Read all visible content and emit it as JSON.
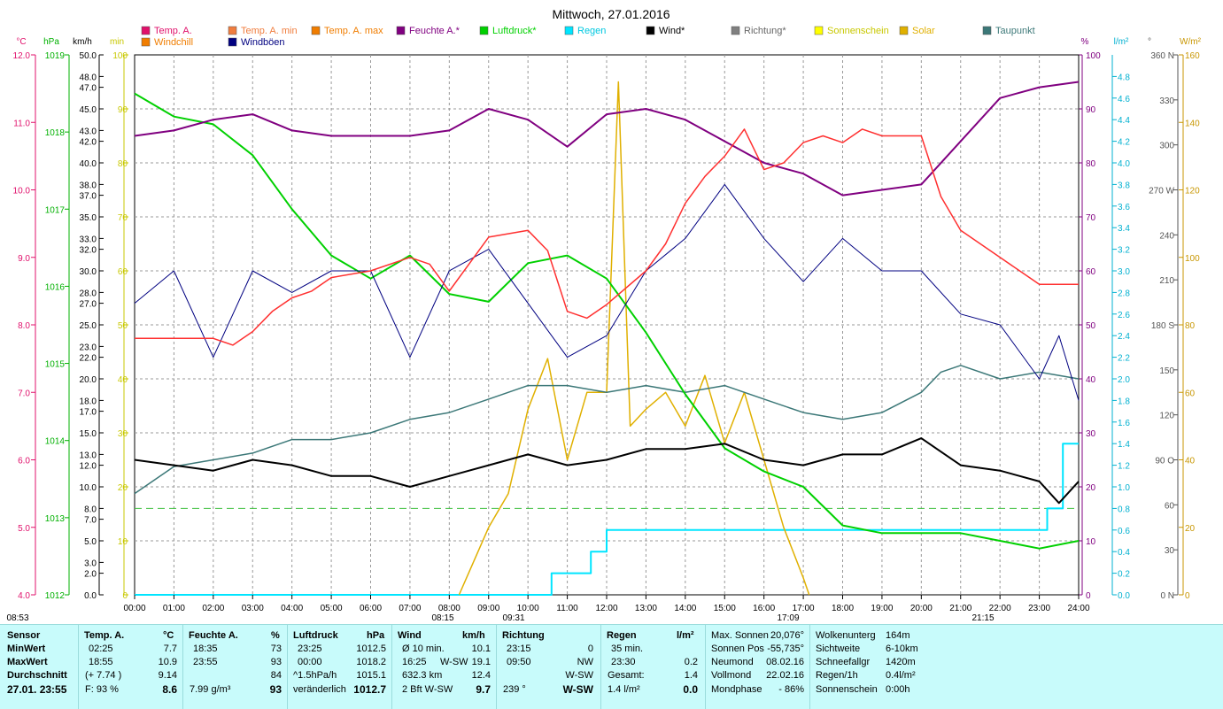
{
  "chart_data": {
    "type": "line",
    "title": "Mittwoch, 27.01.2016",
    "x_ticks": [
      "00:00",
      "01:00",
      "02:00",
      "03:00",
      "04:00",
      "05:00",
      "06:00",
      "07:00",
      "08:00",
      "09:00",
      "10:00",
      "11:00",
      "12:00",
      "13:00",
      "14:00",
      "15:00",
      "16:00",
      "17:00",
      "18:00",
      "19:00",
      "20:00",
      "21:00",
      "22:00",
      "23:00",
      "24:00"
    ],
    "x_range_hours": [
      0,
      24
    ],
    "time_markers": [
      "08:53",
      "08:15",
      "09:31",
      "17:09",
      "21:15"
    ],
    "legend": [
      {
        "name": "Temp. A.",
        "color": "#e0106b"
      },
      {
        "name": "Temp. A. min",
        "color": "#f07d3e"
      },
      {
        "name": "Temp. A. max",
        "color": "#f07d00"
      },
      {
        "name": "Feuchte A.*",
        "color": "#800080"
      },
      {
        "name": "Luftdruck*",
        "color": "#00d000"
      },
      {
        "name": "Regen",
        "color": "#00e5ff"
      },
      {
        "name": "Wind*",
        "color": "#000000"
      },
      {
        "name": "Richtung*",
        "color": "#808080"
      },
      {
        "name": "Sonnenschein",
        "color": "#ffff00"
      },
      {
        "name": "Solar",
        "color": "#e0b000"
      },
      {
        "name": "Taupunkt",
        "color": "#3c7878"
      },
      {
        "name": "Windchill",
        "color": "#f07d00"
      },
      {
        "name": "Windböen",
        "color": "#000080"
      }
    ],
    "axis_units": {
      "temp": "°C",
      "press": "hPa",
      "wind": "km/h",
      "sun": "min",
      "hum": "%",
      "rain": "l/m²",
      "dir": "°",
      "solar": "W/m²"
    },
    "y_temp_ticks": [
      "12.0",
      "11.0",
      "10.0",
      "9.0",
      "8.0",
      "7.0",
      "6.0",
      "5.0",
      "4.0"
    ],
    "y_press_ticks": [
      "1019",
      "1018",
      "1017",
      "1016",
      "1015",
      "1014",
      "1013",
      "1012"
    ],
    "y_wind_ticks": [
      "50.0",
      "48.0",
      "47.0",
      "45.0",
      "43.0",
      "42.0",
      "40.0",
      "38.0",
      "37.0",
      "35.0",
      "33.0",
      "32.0",
      "30.0",
      "28.0",
      "27.0",
      "25.0",
      "23.0",
      "22.0",
      "20.0",
      "18.0",
      "17.0",
      "15.0",
      "13.0",
      "12.0",
      "10.0",
      "8.0",
      "7.0",
      "5.0",
      "3.0",
      "2.0",
      "0.0"
    ],
    "y_sun_ticks": [
      "100",
      "90",
      "80",
      "70",
      "60",
      "50",
      "40",
      "30",
      "20",
      "10",
      "0"
    ],
    "y_hum_ticks": [
      "100",
      "90",
      "80",
      "70",
      "60",
      "50",
      "40",
      "30",
      "20",
      "10",
      "0"
    ],
    "y_rain_ticks": [
      "4.8",
      "4.6",
      "4.4",
      "4.2",
      "4.0",
      "3.8",
      "3.6",
      "3.4",
      "3.2",
      "3.0",
      "2.8",
      "2.6",
      "2.4",
      "2.2",
      "2.0",
      "1.8",
      "1.6",
      "1.4",
      "1.2",
      "1.0",
      "0.8",
      "0.6",
      "0.4",
      "0.2",
      "0.0"
    ],
    "y_dir_ticks": [
      "360 N",
      "330",
      "300",
      "270 W",
      "240",
      "210",
      "180 S",
      "150",
      "120",
      "90 O",
      "60",
      "30",
      "0 N"
    ],
    "y_solar_ticks": [
      "160",
      "140",
      "120",
      "100",
      "80",
      "60",
      "40",
      "20",
      "0"
    ],
    "series": {
      "temperature_c": {
        "t": [
          0,
          1,
          2,
          2.5,
          3,
          3.5,
          4,
          4.5,
          5,
          6,
          7,
          7.5,
          8,
          9,
          10,
          10.5,
          11,
          11.5,
          12,
          13,
          13.5,
          14,
          14.5,
          15,
          15.5,
          16,
          16.5,
          17,
          17.5,
          18,
          18.5,
          19,
          20,
          20.5,
          21,
          21.5,
          22,
          22.5,
          23,
          23.5,
          24
        ],
        "v": [
          7.8,
          7.8,
          7.8,
          7.7,
          7.9,
          8.2,
          8.4,
          8.5,
          8.7,
          8.8,
          9.0,
          8.9,
          8.5,
          9.3,
          9.4,
          9.1,
          8.2,
          8.1,
          8.3,
          8.8,
          9.2,
          9.8,
          10.2,
          10.5,
          10.9,
          10.3,
          10.4,
          10.7,
          10.8,
          10.7,
          10.9,
          10.8,
          10.8,
          9.9,
          9.4,
          9.2,
          9.0,
          8.8,
          8.6,
          8.6,
          8.6
        ]
      },
      "humidity_pct": {
        "t": [
          0,
          1,
          2,
          3,
          4,
          5,
          6,
          7,
          8,
          9,
          10,
          11,
          12,
          13,
          14,
          15,
          16,
          17,
          18,
          19,
          20,
          21,
          22,
          23,
          24
        ],
        "v": [
          85,
          86,
          88,
          89,
          86,
          85,
          85,
          85,
          86,
          90,
          88,
          83,
          89,
          90,
          88,
          84,
          80,
          78,
          74,
          75,
          76,
          84,
          92,
          94,
          95
        ]
      },
      "pressure_hpa": {
        "t": [
          0,
          1,
          2,
          3,
          4,
          5,
          6,
          7,
          8,
          9,
          10,
          11,
          12,
          13,
          14,
          15,
          16,
          17,
          18,
          19,
          20,
          21,
          22,
          23,
          24
        ],
        "v": [
          1018.5,
          1018.2,
          1018.1,
          1017.7,
          1017.0,
          1016.4,
          1016.1,
          1016.4,
          1015.9,
          1015.8,
          1016.3,
          1016.4,
          1016.1,
          1015.4,
          1014.6,
          1013.9,
          1013.6,
          1013.4,
          1012.9,
          1012.8,
          1012.8,
          1012.8,
          1012.7,
          1012.6,
          1012.7
        ]
      },
      "dewpoint_c": {
        "t": [
          0,
          1,
          2,
          3,
          4,
          5,
          6,
          7,
          8,
          9,
          10,
          11,
          12,
          13,
          14,
          15,
          16,
          17,
          18,
          19,
          20,
          20.5,
          21,
          22,
          23,
          24
        ],
        "v": [
          5.5,
          5.9,
          6.0,
          6.1,
          6.3,
          6.3,
          6.4,
          6.6,
          6.7,
          6.9,
          7.1,
          7.1,
          7.0,
          7.1,
          7.0,
          7.1,
          6.9,
          6.7,
          6.6,
          6.7,
          7.0,
          7.3,
          7.4,
          7.2,
          7.3,
          7.2
        ]
      },
      "wind_kmh": {
        "t": [
          0,
          1,
          2,
          3,
          4,
          5,
          6,
          7,
          8,
          9,
          10,
          11,
          12,
          13,
          14,
          15,
          16,
          17,
          18,
          19,
          20,
          21,
          22,
          23,
          23.5,
          24
        ],
        "v": [
          12.5,
          12.0,
          11.5,
          12.5,
          12.0,
          11.0,
          11.0,
          10.0,
          11.0,
          12.0,
          13.0,
          12.0,
          12.5,
          13.5,
          13.5,
          14.0,
          12.5,
          12.0,
          13.0,
          13.0,
          14.5,
          12.0,
          11.5,
          10.5,
          8.5,
          10.5
        ]
      },
      "gust_kmh": {
        "t": [
          0,
          1,
          2,
          3,
          4,
          5,
          6,
          7,
          8,
          9,
          10,
          11,
          12,
          13,
          14,
          15,
          16,
          17,
          18,
          19,
          20,
          21,
          22,
          23,
          23.5,
          24
        ],
        "v": [
          27,
          30,
          22,
          30,
          28,
          30,
          30,
          22,
          30,
          32,
          27,
          22,
          24,
          30,
          33,
          38,
          33,
          29,
          33,
          30,
          30,
          26,
          25,
          20,
          24,
          18
        ]
      },
      "solar_wm2": {
        "t": [
          8.25,
          9,
          9.5,
          10,
          10.5,
          11,
          11.5,
          12,
          12.3,
          12.6,
          13,
          13.5,
          14,
          14.5,
          15,
          15.5,
          16,
          16.5,
          17,
          17.15
        ],
        "v": [
          0,
          20,
          30,
          55,
          70,
          40,
          60,
          60,
          152,
          50,
          55,
          60,
          50,
          65,
          45,
          60,
          40,
          20,
          5,
          0
        ]
      },
      "rain_total_lm2": {
        "t": [
          0,
          10.4,
          10.6,
          11.2,
          11.6,
          12,
          21.5,
          22.1,
          22.8,
          23.2,
          23.6,
          24
        ],
        "v": [
          0,
          0,
          0.2,
          0.2,
          0.4,
          0.6,
          0.6,
          0.6,
          0.6,
          0.8,
          1.4,
          1.4
        ]
      }
    },
    "reference_lines": {
      "wind_avg_kmh": 8.0
    }
  },
  "panel": {
    "col1": {
      "header": "Sensor",
      "rows": [
        "MinWert",
        "MaxWert",
        "Durchschnitt",
        "27.01. 23:55"
      ]
    },
    "temp": {
      "header": "Temp. A.",
      "unit": "°C",
      "r1_time": "02:25",
      "r1_val": "7.7",
      "r2_time": "18:55",
      "r2_val": "10.9",
      "r3_a": "(+ 7.74 )",
      "r3_val": "9.14",
      "r4_a": "F: 93 %",
      "r4_val": "8.6"
    },
    "hum": {
      "header": "Feuchte A.",
      "unit": "%",
      "r1_time": "18:35",
      "r1_val": "73",
      "r2_time": "23:55",
      "r2_val": "93",
      "r3_val": "84",
      "r4_a": "7.99 g/m³",
      "r4_val": "93"
    },
    "press": {
      "header": "Luftdruck",
      "unit": "hPa",
      "r1_time": "23:25",
      "r1_val": "1012.5",
      "r2_time": "00:00",
      "r2_val": "1018.2",
      "r3_a": "^1.5hPa/h",
      "r3_val": "1015.1",
      "r4_a": "veränderlich",
      "r4_val": "1012.7"
    },
    "wind": {
      "header": "Wind",
      "unit": "km/h",
      "r1_a": "Ø 10 min.",
      "r1_val": "10.1",
      "r2_a": "16:25",
      "r2_b": "W-SW",
      "r2_val": "19.1",
      "r3_a": "632.3 km",
      "r3_val": "12.4",
      "r4_a": "2 Bft W-SW",
      "r4_val": "9.7"
    },
    "dir": {
      "header": "Richtung",
      "r1_time": "23:15",
      "r1_val": "0",
      "r2_time": "09:50",
      "r2_val": "NW",
      "r3_val": "W-SW",
      "r4_a": "239 °",
      "r4_val": "W-SW"
    },
    "rain": {
      "header": "Regen",
      "unit": "l/m²",
      "r1_a": "35 min.",
      "r2_time": "23:30",
      "r2_val": "0.2",
      "r3_a": "Gesamt:",
      "r3_val": "1.4",
      "r4_a": "1.4 l/m²",
      "r4_val": "0.0"
    },
    "sun": [
      {
        "label": "Max. Sonnen",
        "value": "20,076°"
      },
      {
        "label": "Sonnen Pos",
        "value": "-55,735°"
      },
      {
        "label": "Neumond",
        "value": "08.02.16"
      },
      {
        "label": "Vollmond",
        "value": "22.02.16"
      },
      {
        "label": "Mondphase",
        "value": "- 86%"
      }
    ],
    "clouds": [
      {
        "label": "Wolkenunterg",
        "value": "164m"
      },
      {
        "label": "Sichtweite",
        "value": "6-10km"
      },
      {
        "label": "Schneefallgr",
        "value": "1420m"
      },
      {
        "label": "Regen/1h",
        "value": "0.4l/m²"
      },
      {
        "label": "Sonnenschein",
        "value": "0:00h"
      }
    ]
  }
}
